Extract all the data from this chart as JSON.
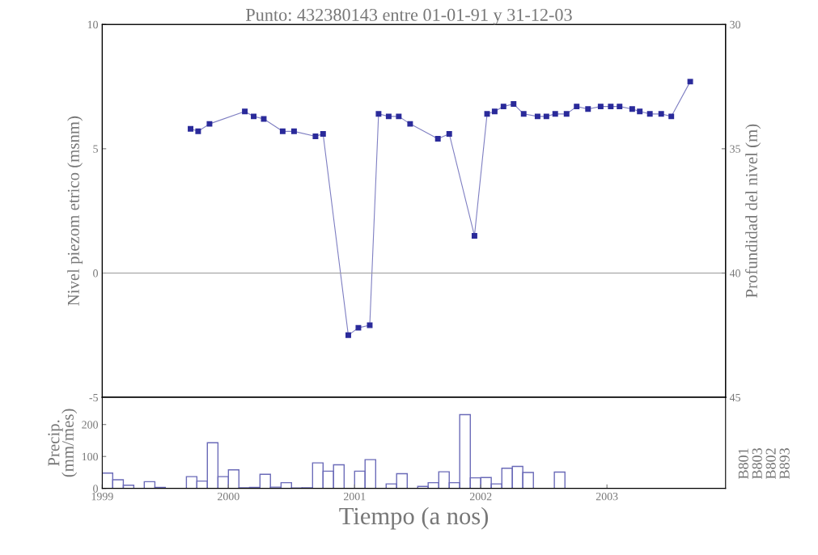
{
  "chart_data": [
    {
      "type": "line",
      "title": "Punto: 432380143 entre 01-01-91 y 31-12-03",
      "ylabel": "Nivel piezom etrico (msnm)",
      "y2label": "Profundidad del nivel (m)",
      "x": [
        1999.7,
        1999.76,
        1999.85,
        2000.13,
        2000.2,
        2000.28,
        2000.43,
        2000.52,
        2000.69,
        2000.75,
        2000.95,
        2001.03,
        2001.12,
        2001.19,
        2001.27,
        2001.35,
        2001.44,
        2001.66,
        2001.75,
        2001.95,
        2002.05,
        2002.11,
        2002.18,
        2002.26,
        2002.34,
        2002.45,
        2002.52,
        2002.59,
        2002.68,
        2002.76,
        2002.85,
        2002.95,
        2003.03,
        2003.1,
        2003.2,
        2003.26,
        2003.34,
        2003.43,
        2003.51,
        2003.66
      ],
      "series": [
        {
          "color": "#2a2a9a",
          "values": [
            5.8,
            5.7,
            6.0,
            6.5,
            6.3,
            6.2,
            5.7,
            5.7,
            5.5,
            5.6,
            -2.5,
            -2.2,
            -2.1,
            6.4,
            6.3,
            6.3,
            6.0,
            5.4,
            5.6,
            1.5,
            6.4,
            6.5,
            6.7,
            6.8,
            6.4,
            6.3,
            6.3,
            6.4,
            6.4,
            6.7,
            6.6,
            6.7,
            6.7,
            6.7,
            6.6,
            6.5,
            6.4,
            6.4,
            6.3,
            7.7
          ]
        }
      ],
      "xlim": [
        1999,
        2003.94
      ],
      "ylim": [
        -5,
        10
      ],
      "yticks": [
        -5,
        0,
        5,
        10
      ],
      "y2lim": [
        45,
        30
      ],
      "y2ticks": [
        30,
        35,
        40,
        45
      ],
      "ref_lines": [
        {
          "axis": "y",
          "value": 0,
          "color": "#999999"
        }
      ],
      "marker": "square",
      "line_style": "solid",
      "grid": false,
      "tick_labels": "y"
    },
    {
      "type": "histogram",
      "ylabel": "Precip.\n(mm/mes)",
      "xlabel": "Tiempo (a nos)",
      "bins": [
        1999.0,
        1999.083,
        1999.167,
        1999.25,
        1999.333,
        1999.417,
        1999.5,
        1999.583,
        1999.667,
        1999.75,
        1999.833,
        1999.917,
        2000.0,
        2000.083,
        2000.167,
        2000.25,
        2000.333,
        2000.417,
        2000.5,
        2000.583,
        2000.667,
        2000.75,
        2000.833,
        2000.917,
        2001.0,
        2001.083,
        2001.167,
        2001.25,
        2001.333,
        2001.417,
        2001.5,
        2001.583,
        2001.667,
        2001.75,
        2001.833,
        2001.917,
        2002.0,
        2002.083,
        2002.167,
        2002.25,
        2002.333,
        2002.417,
        2002.5,
        2002.583,
        2002.667
      ],
      "values": [
        48,
        27,
        10,
        0,
        21,
        3,
        0,
        0,
        37,
        23,
        143,
        37,
        58,
        2,
        3,
        44,
        4,
        18,
        1,
        2,
        80,
        54,
        74,
        0,
        54,
        90,
        0,
        14,
        46,
        0,
        6,
        18,
        52,
        18,
        231,
        33,
        34,
        14,
        63,
        69,
        50,
        0,
        null,
        51
      ],
      "color": "#6a6ab8",
      "xlim": [
        1999,
        2003.94
      ],
      "xticks": [
        1999,
        2000,
        2001,
        2002,
        2003
      ],
      "ylim": [
        0,
        285
      ],
      "yticks": [
        0,
        100,
        200
      ],
      "annotations": [
        "B801",
        "B803",
        "B802",
        "B893"
      ],
      "grid": false
    }
  ]
}
